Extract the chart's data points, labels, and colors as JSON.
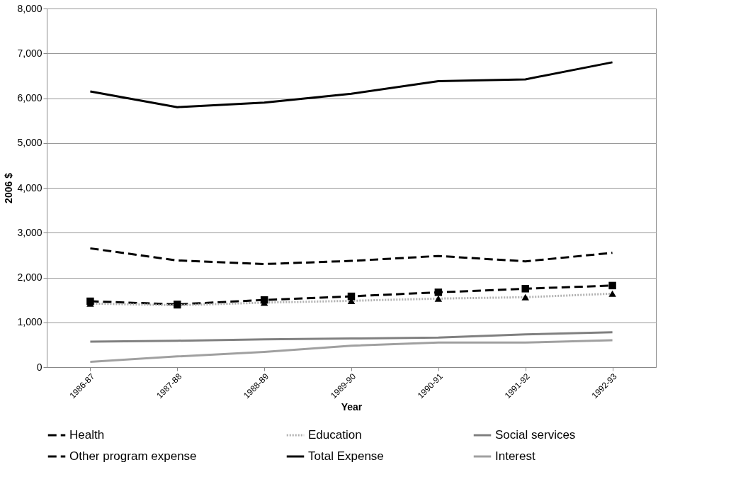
{
  "chart_data": {
    "type": "line",
    "xlabel": "Year",
    "ylabel": "2006 $",
    "categories": [
      "1986-87",
      "1987-88",
      "1988-89",
      "1989-90",
      "1990-91",
      "1991-92",
      "1992-93"
    ],
    "series": [
      {
        "name": "Health",
        "color": "#000000",
        "line_style": "dashed",
        "marker": "square",
        "values": [
          1470,
          1400,
          1500,
          1580,
          1670,
          1750,
          1820
        ]
      },
      {
        "name": "Education",
        "color": "#b0b0b0",
        "line_style": "dotted",
        "marker": "triangle",
        "values": [
          1420,
          1380,
          1440,
          1480,
          1530,
          1560,
          1640
        ]
      },
      {
        "name": "Social services",
        "color": "#808080",
        "line_style": "solid",
        "marker": "none",
        "values": [
          570,
          590,
          620,
          640,
          660,
          730,
          780
        ]
      },
      {
        "name": "Other program expense",
        "color": "#000000",
        "line_style": "dashed",
        "marker": "none",
        "values": [
          2650,
          2380,
          2300,
          2370,
          2480,
          2360,
          2550
        ]
      },
      {
        "name": "Total Expense",
        "color": "#000000",
        "line_style": "solid",
        "marker": "none",
        "values": [
          6150,
          5800,
          5900,
          6100,
          6380,
          6420,
          6800
        ]
      },
      {
        "name": "Interest",
        "color": "#a0a0a0",
        "line_style": "solid",
        "marker": "none",
        "values": [
          120,
          240,
          340,
          480,
          550,
          550,
          600
        ]
      }
    ],
    "ylim": [
      0,
      8000
    ],
    "yticks": [
      0,
      {
        "value": 1000,
        "label": "1,000"
      },
      {
        "value": 2000,
        "label": "2,000"
      },
      {
        "value": 3000,
        "label": "3,000"
      },
      {
        "value": 4000,
        "label": "4,000"
      },
      {
        "value": 5000,
        "label": "5,000"
      },
      {
        "value": 6000,
        "label": "6,000"
      },
      {
        "value": 7000,
        "label": "7,000"
      },
      {
        "value": 8000,
        "label": "8,000"
      }
    ],
    "grid": "y",
    "legend": "bottom"
  }
}
